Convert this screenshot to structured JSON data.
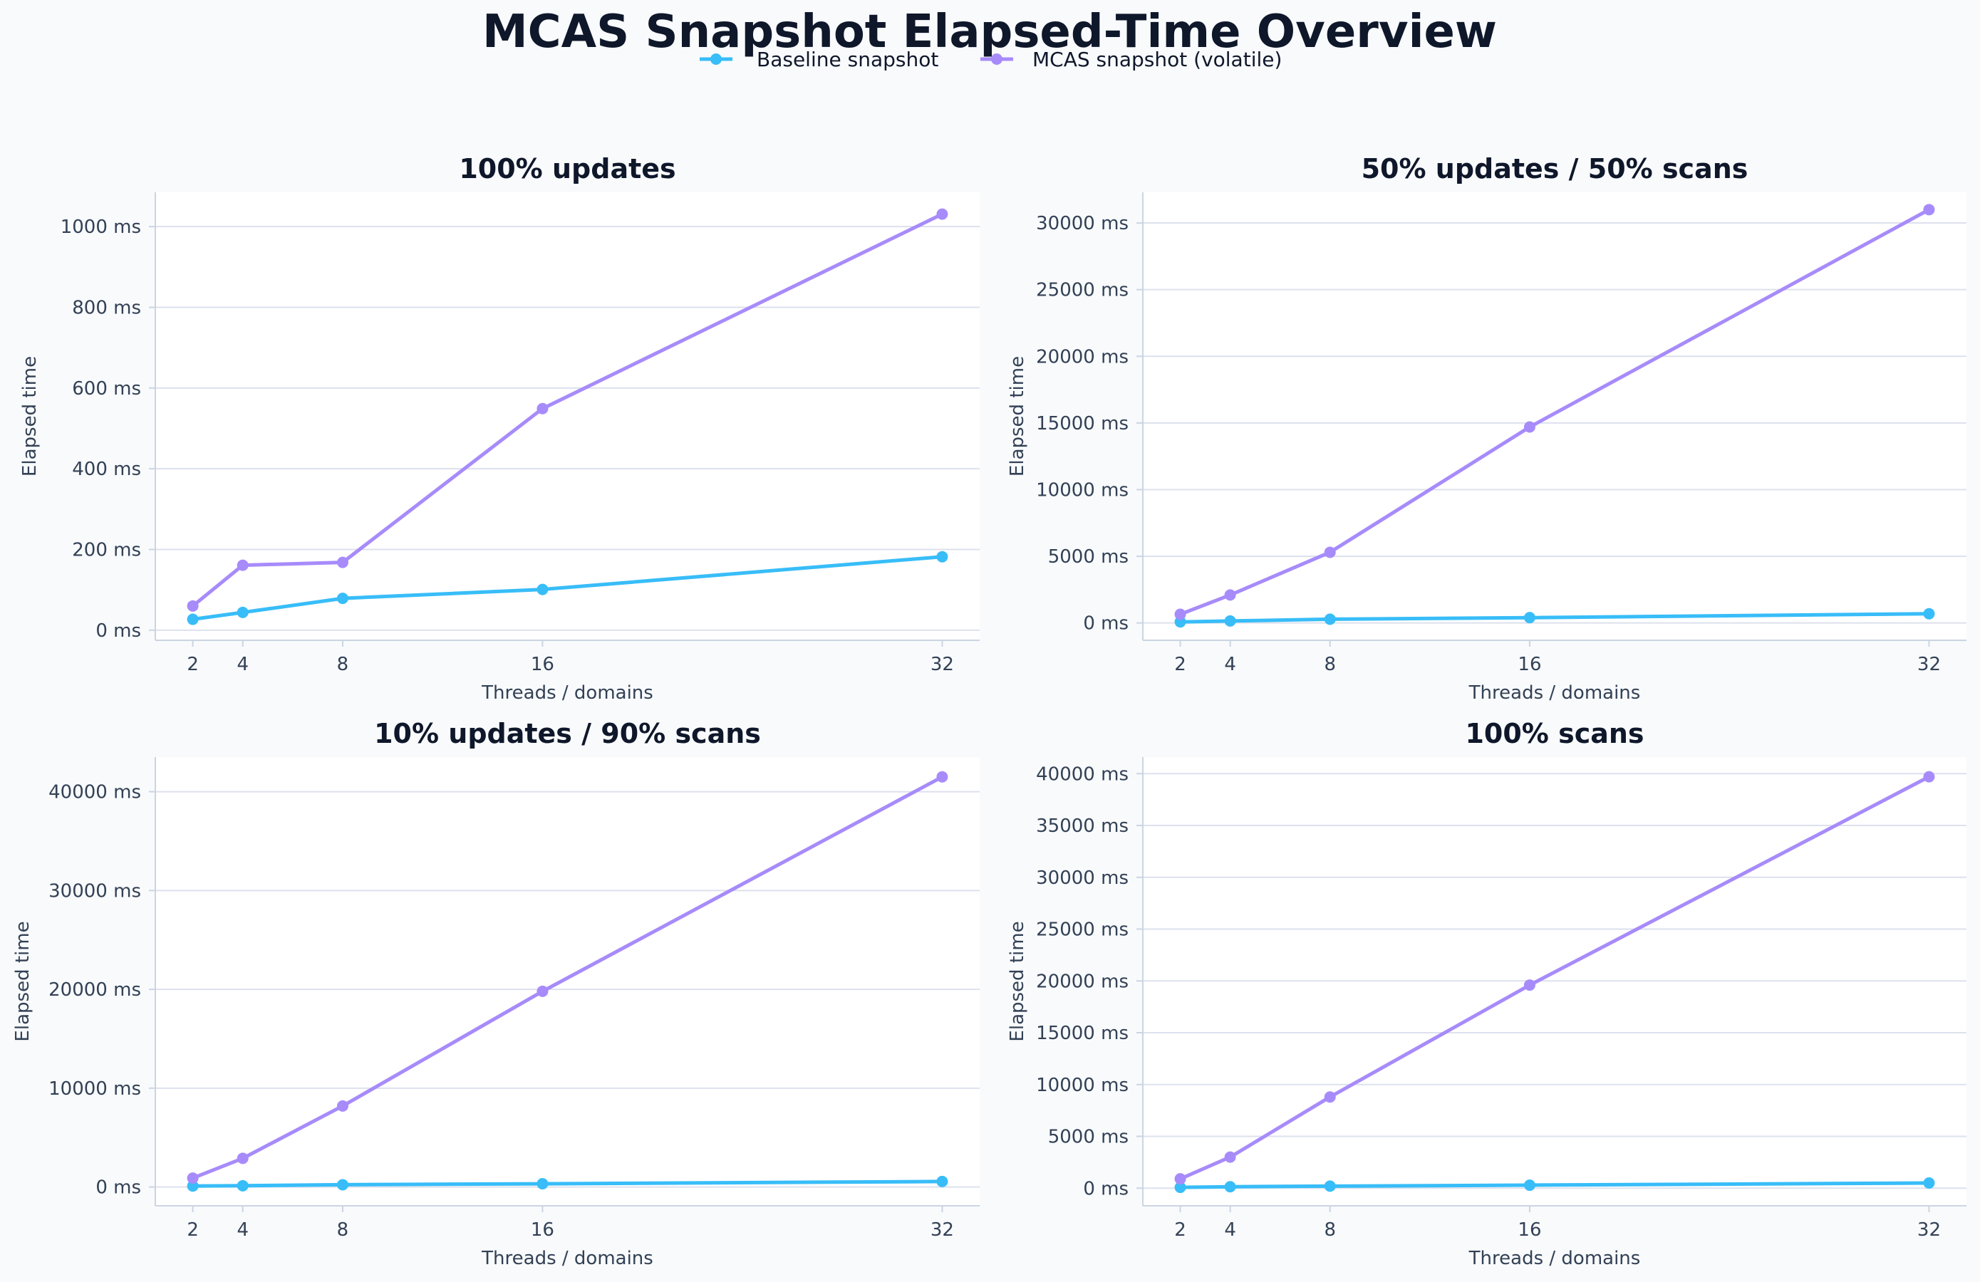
{
  "figure": {
    "title": "MCAS Snapshot Elapsed-Time Overview",
    "background": "#f8fafc"
  },
  "legend": {
    "placement": "top-center",
    "items": [
      {
        "label": "Baseline snapshot",
        "color": "#38bdf8"
      },
      {
        "label": "MCAS snapshot (volatile)",
        "color": "#a78bfa"
      }
    ]
  },
  "chart_data": [
    {
      "type": "line",
      "title": "100% updates",
      "xlabel": "Threads / domains",
      "ylabel": "Elapsed time",
      "x": [
        2,
        4,
        8,
        16,
        32
      ],
      "x_ticks": [
        "2",
        "4",
        "8",
        "16",
        "32"
      ],
      "xlim": [
        0.5,
        33.5
      ],
      "ylim": [
        -25,
        1085
      ],
      "y_ticks": [
        0,
        200,
        400,
        600,
        800,
        1000
      ],
      "y_tick_labels": [
        "0 ms",
        "200 ms",
        "400 ms",
        "600 ms",
        "800 ms",
        "1000 ms"
      ],
      "grid": "horizontal",
      "series": [
        {
          "name": "Baseline snapshot",
          "color": "#38bdf8",
          "values": [
            27,
            44,
            79,
            101,
            182
          ]
        },
        {
          "name": "MCAS snapshot (volatile)",
          "color": "#a78bfa",
          "values": [
            60,
            161,
            168,
            549,
            1031
          ]
        }
      ]
    },
    {
      "type": "line",
      "title": "50% updates / 50% scans",
      "xlabel": "Threads / domains",
      "ylabel": "Elapsed time",
      "x": [
        2,
        4,
        8,
        16,
        32
      ],
      "x_ticks": [
        "2",
        "4",
        "8",
        "16",
        "32"
      ],
      "xlim": [
        0.5,
        33.5
      ],
      "ylim": [
        -1300,
        32300
      ],
      "y_ticks": [
        0,
        5000,
        10000,
        15000,
        20000,
        25000,
        30000
      ],
      "y_tick_labels": [
        "0 ms",
        "5000 ms",
        "10000 ms",
        "15000 ms",
        "20000 ms",
        "25000 ms",
        "30000 ms"
      ],
      "grid": "horizontal",
      "series": [
        {
          "name": "Baseline snapshot",
          "color": "#38bdf8",
          "values": [
            80,
            150,
            280,
            400,
            690
          ]
        },
        {
          "name": "MCAS snapshot (volatile)",
          "color": "#a78bfa",
          "values": [
            650,
            2100,
            5300,
            14700,
            31000
          ]
        }
      ]
    },
    {
      "type": "line",
      "title": "10% updates / 90% scans",
      "xlabel": "Threads / domains",
      "ylabel": "Elapsed time",
      "x": [
        2,
        4,
        8,
        16,
        32
      ],
      "x_ticks": [
        "2",
        "4",
        "8",
        "16",
        "32"
      ],
      "xlim": [
        0.5,
        33.5
      ],
      "ylim": [
        -1900,
        43500
      ],
      "y_ticks": [
        0,
        10000,
        20000,
        30000,
        40000
      ],
      "y_tick_labels": [
        "0 ms",
        "10000 ms",
        "20000 ms",
        "30000 ms",
        "40000 ms"
      ],
      "grid": "horizontal",
      "series": [
        {
          "name": "Baseline snapshot",
          "color": "#38bdf8",
          "values": [
            100,
            130,
            230,
            330,
            560
          ]
        },
        {
          "name": "MCAS snapshot (volatile)",
          "color": "#a78bfa",
          "values": [
            900,
            2900,
            8200,
            19800,
            41500
          ]
        }
      ]
    },
    {
      "type": "line",
      "title": "100% scans",
      "xlabel": "Threads / domains",
      "ylabel": "Elapsed time",
      "x": [
        2,
        4,
        8,
        16,
        32
      ],
      "x_ticks": [
        "2",
        "4",
        "8",
        "16",
        "32"
      ],
      "xlim": [
        0.5,
        33.5
      ],
      "ylim": [
        -1700,
        41600
      ],
      "y_ticks": [
        0,
        5000,
        10000,
        15000,
        20000,
        25000,
        30000,
        35000,
        40000
      ],
      "y_tick_labels": [
        "0 ms",
        "5000 ms",
        "10000 ms",
        "15000 ms",
        "20000 ms",
        "25000 ms",
        "30000 ms",
        "35000 ms",
        "40000 ms"
      ],
      "grid": "horizontal",
      "series": [
        {
          "name": "Baseline snapshot",
          "color": "#38bdf8",
          "values": [
            80,
            140,
            200,
            290,
            500
          ]
        },
        {
          "name": "MCAS snapshot (volatile)",
          "color": "#a78bfa",
          "values": [
            900,
            3000,
            8800,
            19600,
            39700
          ]
        }
      ]
    }
  ]
}
